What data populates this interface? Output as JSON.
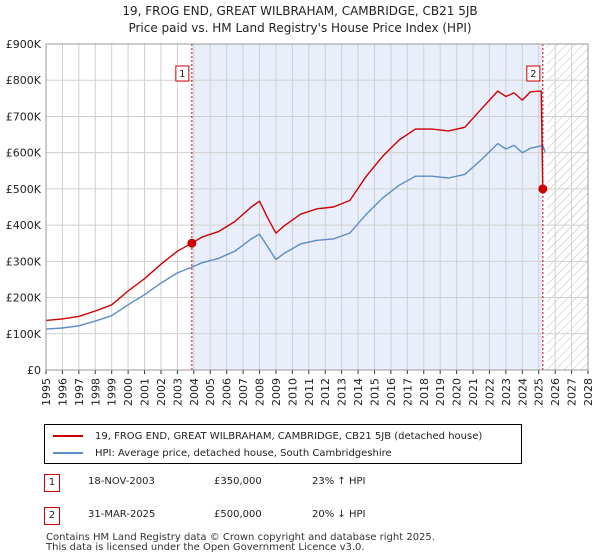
{
  "title_line1": "19, FROG END, GREAT WILBRAHAM, CAMBRIDGE, CB21 5JB",
  "title_line2": "Price paid vs. HM Land Registry's House Price Index (HPI)",
  "colors": {
    "property": "#cc0000",
    "hpi": "#5b8dc8",
    "shade": "#e8eefa",
    "grid": "#d0d0d0"
  },
  "chart_data": {
    "type": "line",
    "xlim": [
      1995,
      2028
    ],
    "ylim": [
      0,
      900000
    ],
    "x_ticks": [
      "1995",
      "1996",
      "1997",
      "1998",
      "1999",
      "2000",
      "2001",
      "2002",
      "2003",
      "2004",
      "2005",
      "2006",
      "2007",
      "2008",
      "2009",
      "2010",
      "2011",
      "2012",
      "2013",
      "2014",
      "2015",
      "2016",
      "2017",
      "2018",
      "2019",
      "2020",
      "2021",
      "2022",
      "2023",
      "2024",
      "2025",
      "2026",
      "2027",
      "2028"
    ],
    "y_ticks": [
      {
        "value": 0,
        "label": "£0"
      },
      {
        "value": 100000,
        "label": "£100K"
      },
      {
        "value": 200000,
        "label": "£200K"
      },
      {
        "value": 300000,
        "label": "£300K"
      },
      {
        "value": 400000,
        "label": "£400K"
      },
      {
        "value": 500000,
        "label": "£500K"
      },
      {
        "value": 600000,
        "label": "£600K"
      },
      {
        "value": 700000,
        "label": "£700K"
      },
      {
        "value": 800000,
        "label": "£800K"
      },
      {
        "value": 900000,
        "label": "£900K"
      }
    ],
    "shaded_region": [
      2003.88,
      2025.25
    ],
    "future_hatch_from": 2025.5,
    "series": [
      {
        "name": "19, FROG END, GREAT WILBRAHAM, CAMBRIDGE, CB21 5JB (detached house)",
        "color": "#cc0000",
        "points": [
          [
            1995.0,
            137000
          ],
          [
            1996.0,
            141000
          ],
          [
            1997.0,
            148000
          ],
          [
            1998.0,
            163000
          ],
          [
            1999.0,
            180000
          ],
          [
            2000.0,
            218000
          ],
          [
            2001.0,
            252000
          ],
          [
            2002.0,
            292000
          ],
          [
            2003.0,
            328000
          ],
          [
            2003.88,
            350000
          ],
          [
            2004.5,
            367000
          ],
          [
            2005.5,
            382000
          ],
          [
            2006.5,
            410000
          ],
          [
            2007.5,
            450000
          ],
          [
            2008.0,
            466000
          ],
          [
            2008.5,
            420000
          ],
          [
            2009.0,
            378000
          ],
          [
            2009.5,
            398000
          ],
          [
            2010.5,
            430000
          ],
          [
            2011.5,
            445000
          ],
          [
            2012.5,
            450000
          ],
          [
            2013.5,
            468000
          ],
          [
            2014.5,
            535000
          ],
          [
            2015.5,
            590000
          ],
          [
            2016.5,
            635000
          ],
          [
            2017.5,
            665000
          ],
          [
            2018.5,
            665000
          ],
          [
            2019.5,
            660000
          ],
          [
            2020.5,
            670000
          ],
          [
            2021.5,
            720000
          ],
          [
            2022.5,
            770000
          ],
          [
            2023.0,
            755000
          ],
          [
            2023.5,
            765000
          ],
          [
            2024.0,
            745000
          ],
          [
            2024.5,
            768000
          ],
          [
            2025.15,
            770000
          ],
          [
            2025.25,
            500000
          ],
          [
            2025.4,
            490000
          ]
        ]
      },
      {
        "name": "HPI: Average price, detached house, South Cambridgeshire",
        "color": "#5b8dc8",
        "points": [
          [
            1995.0,
            113000
          ],
          [
            1996.0,
            116000
          ],
          [
            1997.0,
            122000
          ],
          [
            1998.0,
            135000
          ],
          [
            1999.0,
            150000
          ],
          [
            2000.0,
            180000
          ],
          [
            2001.0,
            208000
          ],
          [
            2002.0,
            240000
          ],
          [
            2003.0,
            268000
          ],
          [
            2003.88,
            284000
          ],
          [
            2004.5,
            296000
          ],
          [
            2005.5,
            308000
          ],
          [
            2006.5,
            328000
          ],
          [
            2007.5,
            362000
          ],
          [
            2008.0,
            375000
          ],
          [
            2008.5,
            340000
          ],
          [
            2009.0,
            305000
          ],
          [
            2009.5,
            322000
          ],
          [
            2010.5,
            348000
          ],
          [
            2011.5,
            358000
          ],
          [
            2012.5,
            362000
          ],
          [
            2013.5,
            378000
          ],
          [
            2014.5,
            430000
          ],
          [
            2015.5,
            475000
          ],
          [
            2016.5,
            510000
          ],
          [
            2017.5,
            535000
          ],
          [
            2018.5,
            535000
          ],
          [
            2019.5,
            530000
          ],
          [
            2020.5,
            540000
          ],
          [
            2021.5,
            580000
          ],
          [
            2022.5,
            625000
          ],
          [
            2023.0,
            610000
          ],
          [
            2023.5,
            620000
          ],
          [
            2024.0,
            600000
          ],
          [
            2024.5,
            612000
          ],
          [
            2025.25,
            620000
          ],
          [
            2025.4,
            600000
          ]
        ]
      }
    ],
    "markers": [
      {
        "label": "1",
        "x": 2003.88,
        "y": 350000
      },
      {
        "label": "2",
        "x": 2025.25,
        "y": 500000
      }
    ]
  },
  "legend": {
    "property_label": "19, FROG END, GREAT WILBRAHAM, CAMBRIDGE, CB21 5JB (detached house)",
    "hpi_label": "HPI: Average price, detached house, South Cambridgeshire"
  },
  "transactions": [
    {
      "num": "1",
      "date": "18-NOV-2003",
      "price": "£350,000",
      "hpi": "23% ↑ HPI"
    },
    {
      "num": "2",
      "date": "31-MAR-2025",
      "price": "£500,000",
      "hpi": "20% ↓ HPI"
    }
  ],
  "footer_line1": "Contains HM Land Registry data © Crown copyright and database right 2025.",
  "footer_line2": "This data is licensed under the Open Government Licence v3.0."
}
